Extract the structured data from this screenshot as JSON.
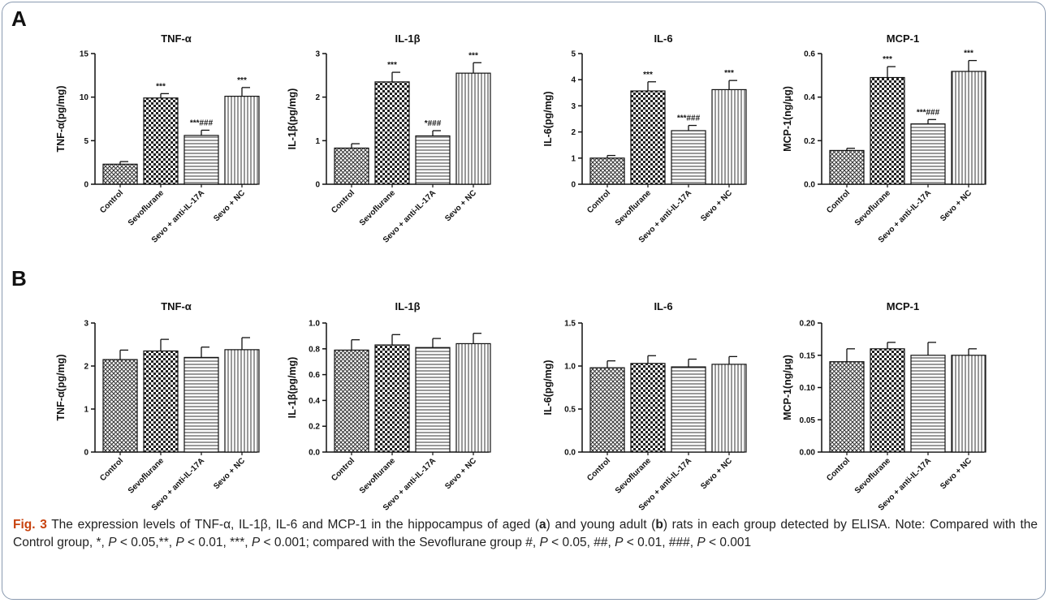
{
  "panels": [
    {
      "letter": "A",
      "charts": [
        {
          "type": "bar",
          "title": "TNF-α",
          "ylabel": "TNF-α(pg/mg)",
          "ylim": [
            0,
            15
          ],
          "yticks": [
            "0",
            "5",
            "10",
            "15"
          ],
          "ytick_values": [
            0,
            5,
            10,
            15
          ],
          "categories": [
            "Control",
            "Sevoflurane",
            "Sevo + anti-IL-17A",
            "Sevo + NC"
          ],
          "values": [
            2.3,
            9.9,
            5.6,
            10.1
          ],
          "errors": [
            0.3,
            0.5,
            0.6,
            1.0
          ],
          "annotations": [
            "",
            "***",
            "***###",
            "***"
          ]
        },
        {
          "type": "bar",
          "title": "IL-1β",
          "ylabel": "IL-1β(pg/mg)",
          "ylim": [
            0,
            3
          ],
          "yticks": [
            "0",
            "1",
            "2",
            "3"
          ],
          "ytick_values": [
            0,
            1,
            2,
            3
          ],
          "categories": [
            "Control",
            "Sevoflurane",
            "Sevo + anti-IL-17A",
            "Sevo + NC"
          ],
          "values": [
            0.83,
            2.35,
            1.11,
            2.55
          ],
          "errors": [
            0.1,
            0.22,
            0.12,
            0.24
          ],
          "annotations": [
            "",
            "***",
            "*###",
            "***"
          ]
        },
        {
          "type": "bar",
          "title": "IL-6",
          "ylabel": "IL-6(pg/mg)",
          "ylim": [
            0,
            5
          ],
          "yticks": [
            "0",
            "1",
            "2",
            "3",
            "4",
            "5"
          ],
          "ytick_values": [
            0,
            1,
            2,
            3,
            4,
            5
          ],
          "categories": [
            "Control",
            "Sevoflurane",
            "Sevo + anti-IL-17A",
            "Sevo + NC"
          ],
          "values": [
            1.0,
            3.57,
            2.05,
            3.62
          ],
          "errors": [
            0.1,
            0.35,
            0.2,
            0.35
          ],
          "annotations": [
            "",
            "***",
            "***###",
            "***"
          ]
        },
        {
          "type": "bar",
          "title": "MCP-1",
          "ylabel": "MCP-1(ng/µg)",
          "ylim": [
            0,
            0.6
          ],
          "yticks": [
            "0.0",
            "0.2",
            "0.4",
            "0.6"
          ],
          "ytick_values": [
            0,
            0.2,
            0.4,
            0.6
          ],
          "categories": [
            "Control",
            "Sevoflurane",
            "Sevo + anti-IL-17A",
            "Sevo + NC"
          ],
          "values": [
            0.155,
            0.49,
            0.277,
            0.518
          ],
          "errors": [
            0.01,
            0.05,
            0.02,
            0.05
          ],
          "annotations": [
            "",
            "***",
            "***###",
            "***"
          ]
        }
      ]
    },
    {
      "letter": "B",
      "charts": [
        {
          "type": "bar",
          "title": "TNF-α",
          "ylabel": "TNF-α(pg/mg)",
          "ylim": [
            0,
            3
          ],
          "yticks": [
            "0",
            "1",
            "2",
            "3"
          ],
          "ytick_values": [
            0,
            1,
            2,
            3
          ],
          "categories": [
            "Control",
            "Sevoflurane",
            "Sevo + anti-IL-17A",
            "Sevo + NC"
          ],
          "values": [
            2.15,
            2.35,
            2.2,
            2.38
          ],
          "errors": [
            0.22,
            0.27,
            0.24,
            0.28
          ],
          "annotations": [
            "",
            "",
            "",
            ""
          ]
        },
        {
          "type": "bar",
          "title": "IL-1β",
          "ylabel": "IL-1β(pg/mg)",
          "ylim": [
            0,
            1.0
          ],
          "yticks": [
            "0.0",
            "0.2",
            "0.4",
            "0.6",
            "0.8",
            "1.0"
          ],
          "ytick_values": [
            0,
            0.2,
            0.4,
            0.6,
            0.8,
            1.0
          ],
          "categories": [
            "Control",
            "Sevoflurane",
            "Sevo + anti-IL-17A",
            "Sevo + NC"
          ],
          "values": [
            0.79,
            0.83,
            0.81,
            0.84
          ],
          "errors": [
            0.08,
            0.08,
            0.07,
            0.08
          ],
          "annotations": [
            "",
            "",
            "",
            ""
          ]
        },
        {
          "type": "bar",
          "title": "IL-6",
          "ylabel": "IL-6(pg/mg)",
          "ylim": [
            0,
            1.5
          ],
          "yticks": [
            "0.0",
            "0.5",
            "1.0",
            "1.5"
          ],
          "ytick_values": [
            0,
            0.5,
            1.0,
            1.5
          ],
          "categories": [
            "Control",
            "Sevoflurane",
            "Sevo + anti-IL-17A",
            "Sevo + NC"
          ],
          "values": [
            0.98,
            1.03,
            0.99,
            1.02
          ],
          "errors": [
            0.08,
            0.09,
            0.09,
            0.09
          ],
          "annotations": [
            "",
            "",
            "",
            ""
          ]
        },
        {
          "type": "bar",
          "title": "MCP-1",
          "ylabel": "MCP-1(ng/µg)",
          "ylim": [
            0,
            0.2
          ],
          "yticks": [
            "0.00",
            "0.05",
            "0.10",
            "0.15",
            "0.20"
          ],
          "ytick_values": [
            0,
            0.05,
            0.1,
            0.15,
            0.2
          ],
          "categories": [
            "Control",
            "Sevoflurane",
            "Sevo + anti-IL-17A",
            "Sevo + NC"
          ],
          "values": [
            0.14,
            0.16,
            0.15,
            0.15
          ],
          "errors": [
            0.02,
            0.01,
            0.02,
            0.01
          ],
          "annotations": [
            "",
            "",
            "",
            ""
          ]
        }
      ]
    }
  ],
  "bar_patterns": [
    "cross-hatch",
    "checkerboard",
    "horizontal-lines",
    "vertical-lines"
  ],
  "colors": {
    "ink": "#111111",
    "figure_label": "#c8430f",
    "frame": "#8a9ab0"
  },
  "caption": {
    "figure_label": "Fig. 3",
    "text_parts": [
      " The expression levels of TNF-α, IL-1β, IL-6 and MCP-1 in the hippocampus of aged (",
      "a",
      ") and young adult (",
      "b",
      ") rats in each group detected by ELISA. Note: Compared with the Control group, *, ",
      "P",
      " < 0.05,**, ",
      "P",
      " < 0.01, ***, ",
      "P",
      " < 0.001; compared with the Sevoflurane group #, ",
      "P",
      " < 0.05, ##, ",
      "P",
      " < 0.01, ###, ",
      "P",
      " < 0.001"
    ]
  }
}
